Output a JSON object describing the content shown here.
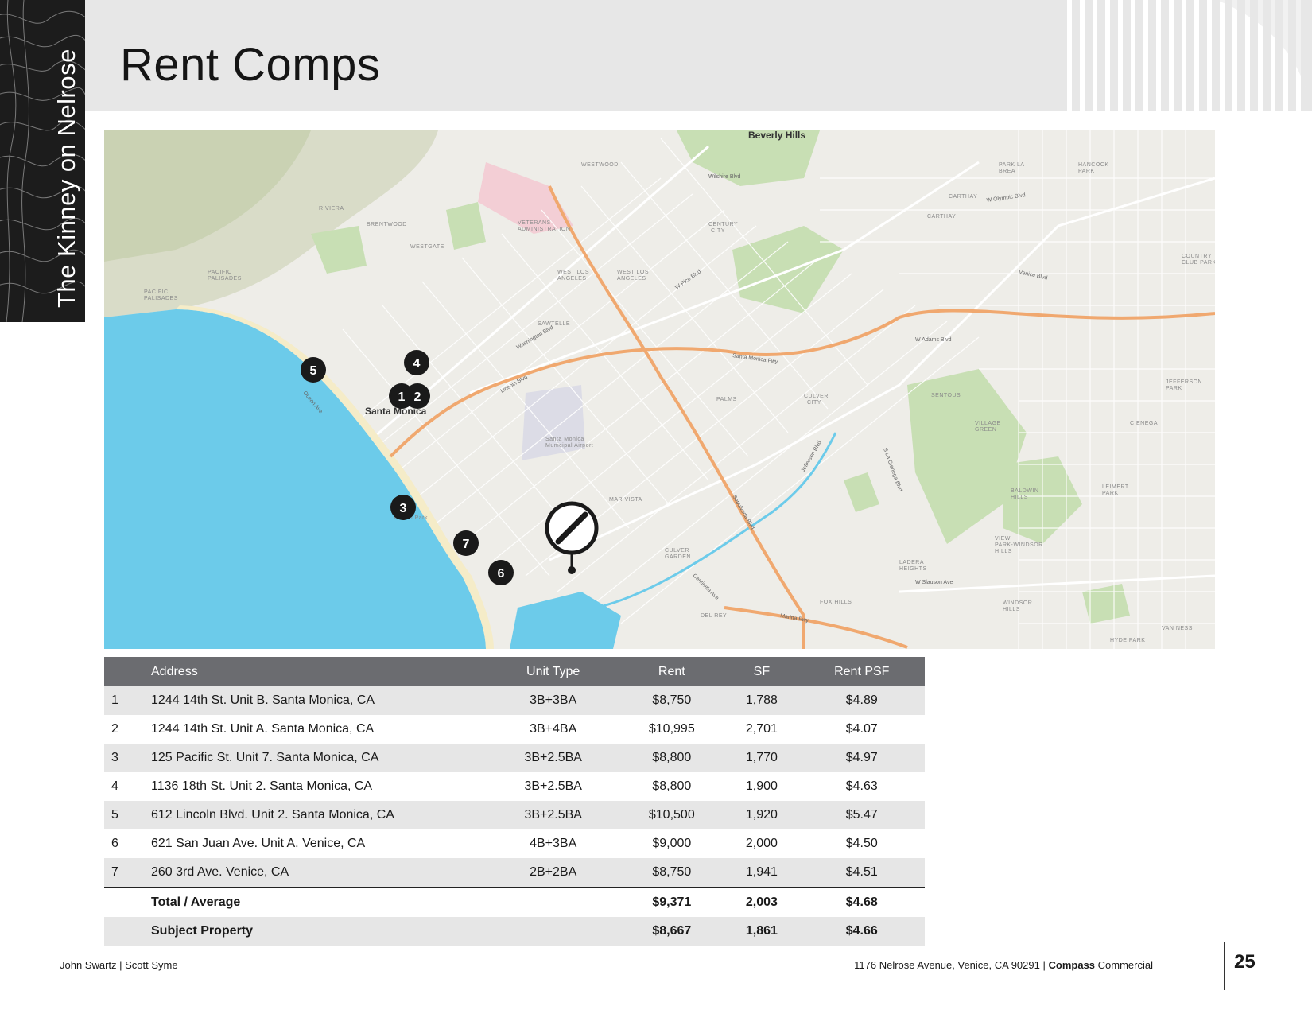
{
  "sidebar": {
    "title": "The Kinney on Nelrose"
  },
  "header": {
    "title": "Rent Comps"
  },
  "map": {
    "city_labels": [
      "Santa Monica",
      "Beverly Hills"
    ],
    "area_labels": [
      "WESTWOOD",
      "BRENTWOOD",
      "RIVIERA",
      "PACIFIC PALISADES",
      "WESTGATE",
      "VETERANS ADMINISTRATION",
      "WEST LOS ANGELES",
      "SAWTELLE",
      "CENTURY CITY",
      "PALMS",
      "CULVER CITY",
      "MAR VISTA",
      "CULVER GARDEN",
      "DEL REY",
      "FOX HILLS",
      "LADERA HEIGHTS",
      "BALDWIN HILLS",
      "VIEW PARK-WINDSOR HILLS",
      "WINDSOR HILLS",
      "VILLAGE GREEN",
      "CIENEGA",
      "LEIMERT PARK",
      "JEFFERSON PARK",
      "HYDE PARK",
      "VAN NESS",
      "CARTHAY",
      "SENTOUS",
      "HANCOCK PARK",
      "PARK LA BREA",
      "COUNTRY CLUB PARK",
      "Ocean Park",
      "Santa Monica Municipal Airport"
    ],
    "road_labels": [
      "Santa Monica Fwy",
      "Marina Fwy",
      "W Pico Blvd",
      "Wilshire Blvd",
      "Venice Blvd",
      "Sepulveda Blvd",
      "Lincoln Blvd",
      "Ocean Ave",
      "S La Cienega Blvd",
      "Washington Blvd",
      "Jefferson Blvd",
      "W Olympic Blvd",
      "W Adams Blvd",
      "W Slauson Ave",
      "Centinela Ave"
    ],
    "pins": [
      {
        "label": "1"
      },
      {
        "label": "2"
      },
      {
        "label": "3"
      },
      {
        "label": "4"
      },
      {
        "label": "5"
      },
      {
        "label": "6"
      },
      {
        "label": "7"
      }
    ],
    "subject_icon": "no-symbol-marker-icon"
  },
  "table": {
    "headers": {
      "address": "Address",
      "unit_type": "Unit Type",
      "rent": "Rent",
      "sf": "SF",
      "rent_psf": "Rent PSF"
    },
    "rows": [
      {
        "num": "1",
        "address": "1244 14th St. Unit B.  Santa Monica, CA",
        "unit_type": "3B+3BA",
        "rent": "$8,750",
        "sf": "1,788",
        "rent_psf": "$4.89"
      },
      {
        "num": "2",
        "address": "1244 14th St. Unit A.  Santa Monica, CA",
        "unit_type": "3B+4BA",
        "rent": "$10,995",
        "sf": "2,701",
        "rent_psf": "$4.07"
      },
      {
        "num": "3",
        "address": "125 Pacific St.  Unit 7.  Santa Monica, CA",
        "unit_type": "3B+2.5BA",
        "rent": "$8,800",
        "sf": "1,770",
        "rent_psf": "$4.97"
      },
      {
        "num": "4",
        "address": "1136 18th St. Unit 2. Santa Monica, CA",
        "unit_type": "3B+2.5BA",
        "rent": "$8,800",
        "sf": "1,900",
        "rent_psf": "$4.63"
      },
      {
        "num": "5",
        "address": "612 Lincoln Blvd. Unit 2. Santa Monica, CA",
        "unit_type": "3B+2.5BA",
        "rent": "$10,500",
        "sf": "1,920",
        "rent_psf": "$5.47"
      },
      {
        "num": "6",
        "address": "621 San Juan Ave. Unit A. Venice, CA",
        "unit_type": "4B+3BA",
        "rent": "$9,000",
        "sf": "2,000",
        "rent_psf": "$4.50"
      },
      {
        "num": "7",
        "address": "260 3rd Ave.  Venice, CA",
        "unit_type": "2B+2BA",
        "rent": "$8,750",
        "sf": "1,941",
        "rent_psf": "$4.51"
      }
    ],
    "total": {
      "label": "Total / Average",
      "rent": "$9,371",
      "sf": "2,003",
      "rent_psf": "$4.68"
    },
    "subject": {
      "label": "Subject Property",
      "rent": "$8,667",
      "sf": "1,861",
      "rent_psf": "$4.66"
    }
  },
  "footer": {
    "agents": "John Swartz | Scott Syme",
    "address": "1176 Nelrose Avenue, Venice, CA 90291",
    "separator": "|",
    "brand_bold": "Compass",
    "brand_rest": "Commercial",
    "page_number": "25"
  },
  "colors": {
    "ocean": "#6ccbea",
    "freeway": "#f0a86f",
    "park": "#c8dfb4",
    "land": "#eeede8",
    "pin": "#1a1a1a",
    "table_header": "#6b6c70"
  }
}
